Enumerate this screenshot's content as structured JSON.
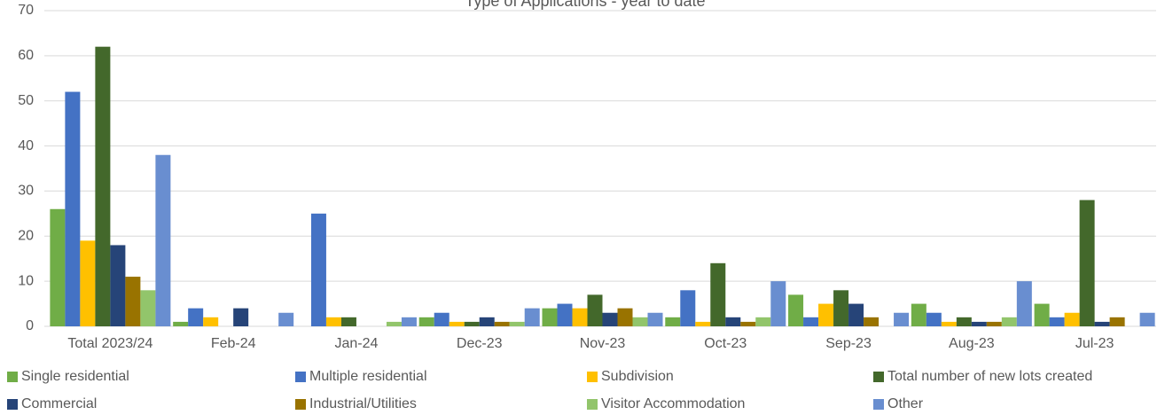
{
  "chart_data": {
    "type": "bar",
    "title": "Type of Applications - year to date",
    "categories": [
      "Total 2023/24",
      "Feb-24",
      "Jan-24",
      "Dec-23",
      "Nov-23",
      "Oct-23",
      "Sep-23",
      "Aug-23",
      "Jul-23"
    ],
    "series": [
      {
        "name": "Single residential",
        "color": "#70ad47",
        "values": [
          26,
          1,
          0,
          2,
          4,
          2,
          7,
          5,
          5
        ]
      },
      {
        "name": "Multiple residential",
        "color": "#4472c4",
        "values": [
          52,
          4,
          25,
          3,
          5,
          8,
          2,
          3,
          2
        ]
      },
      {
        "name": "Subdivision",
        "color": "#ffc000",
        "values": [
          19,
          2,
          2,
          1,
          4,
          1,
          5,
          1,
          3
        ]
      },
      {
        "name": "Total number of new lots created",
        "color": "#43682b",
        "values": [
          62,
          0,
          2,
          1,
          7,
          14,
          8,
          2,
          28
        ]
      },
      {
        "name": "Commercial",
        "color": "#264478",
        "values": [
          18,
          4,
          0,
          2,
          3,
          2,
          5,
          1,
          1
        ]
      },
      {
        "name": "Industrial/Utilities",
        "color": "#997300",
        "values": [
          11,
          0,
          0,
          1,
          4,
          1,
          2,
          1,
          2
        ]
      },
      {
        "name": "Visitor Accommodation",
        "color": "#92c56b",
        "values": [
          8,
          0,
          1,
          1,
          2,
          2,
          0,
          2,
          0
        ]
      },
      {
        "name": "Other",
        "color": "#698ed0",
        "values": [
          38,
          3,
          2,
          4,
          3,
          10,
          3,
          10,
          3
        ]
      }
    ],
    "ylim": [
      0,
      70
    ],
    "yticks": [
      0,
      10,
      20,
      30,
      40,
      50,
      60,
      70
    ],
    "grid": true,
    "legend": "bottom"
  }
}
